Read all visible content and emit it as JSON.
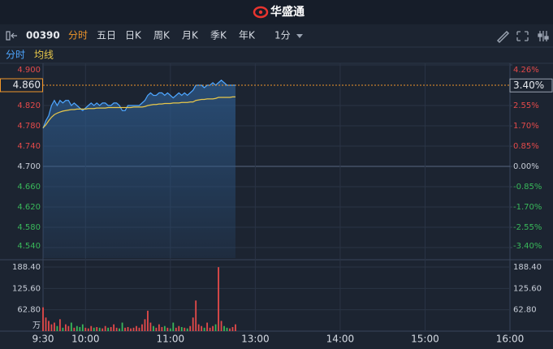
{
  "header": {
    "title": "华盛通"
  },
  "toolbar": {
    "code": "00390",
    "tabs": [
      "分时",
      "五日",
      "日K",
      "周K",
      "月K",
      "季K",
      "年K"
    ],
    "period": "1分"
  },
  "chart_data": {
    "type": "line",
    "x": [
      0,
      2,
      4,
      6,
      8,
      10,
      12,
      14,
      16,
      18,
      20,
      22,
      24,
      26,
      28,
      30,
      32,
      34,
      36,
      38,
      40,
      42,
      44,
      46,
      48,
      50,
      52,
      54,
      56,
      58,
      60,
      62,
      64,
      66,
      68,
      70,
      72,
      74,
      76,
      78,
      80,
      82,
      84,
      86,
      88,
      90,
      92,
      94,
      96,
      98,
      100,
      102,
      104,
      106,
      108,
      110,
      112,
      114,
      116,
      118,
      120,
      122,
      124,
      126,
      128,
      130,
      132,
      134,
      136
    ],
    "xlim": [
      0,
      330
    ],
    "xticks": [
      {
        "value": 0,
        "label": "9:30"
      },
      {
        "value": 30,
        "label": "10:00"
      },
      {
        "value": 90,
        "label": "11:00"
      },
      {
        "value": 150,
        "label": "13:00"
      },
      {
        "value": 210,
        "label": "14:00"
      },
      {
        "value": 270,
        "label": "15:00"
      },
      {
        "value": 330,
        "label": "16:00"
      }
    ],
    "ylim": [
      4.54,
      4.9
    ],
    "yticks": [
      {
        "value": 4.9,
        "label": "4.900"
      },
      {
        "value": 4.82,
        "label": "4.820"
      },
      {
        "value": 4.78,
        "label": "4.780"
      },
      {
        "value": 4.74,
        "label": "4.740"
      },
      {
        "value": 4.7,
        "label": "4.700"
      },
      {
        "value": 4.66,
        "label": "4.660"
      },
      {
        "value": 4.62,
        "label": "4.620"
      },
      {
        "value": 4.58,
        "label": "4.580"
      },
      {
        "value": 4.54,
        "label": "4.540"
      }
    ],
    "y2lim": [
      -3.4,
      4.26
    ],
    "y2ticks": [
      {
        "value": 4.26,
        "label": "4.26%"
      },
      {
        "value": 2.55,
        "label": "2.55%"
      },
      {
        "value": 1.7,
        "label": "1.70%"
      },
      {
        "value": 0.85,
        "label": "0.85%"
      },
      {
        "value": 0,
        "label": "0.00%"
      },
      {
        "value": -0.85,
        "label": "-0.85%"
      },
      {
        "value": -1.7,
        "label": "-1.70%"
      },
      {
        "value": -2.55,
        "label": "-2.55%"
      },
      {
        "value": -3.4,
        "label": "-3.40%"
      }
    ],
    "grid": true,
    "series": [
      {
        "name": "分时",
        "color": "#4ea6ff",
        "values": [
          4.775,
          4.79,
          4.8,
          4.82,
          4.83,
          4.82,
          4.83,
          4.825,
          4.83,
          4.83,
          4.82,
          4.825,
          4.82,
          4.815,
          4.81,
          4.815,
          4.82,
          4.825,
          4.82,
          4.825,
          4.82,
          4.825,
          4.825,
          4.82,
          4.82,
          4.825,
          4.825,
          4.82,
          4.81,
          4.81,
          4.82,
          4.82,
          4.82,
          4.82,
          4.82,
          4.825,
          4.83,
          4.84,
          4.845,
          4.84,
          4.84,
          4.845,
          4.845,
          4.84,
          4.845,
          4.84,
          4.835,
          4.84,
          4.845,
          4.84,
          4.845,
          4.84,
          4.845,
          4.85,
          4.86,
          4.86,
          4.86,
          4.855,
          4.86,
          4.86,
          4.865,
          4.86,
          4.865,
          4.87,
          4.865,
          4.86,
          4.86,
          4.86,
          4.86
        ]
      },
      {
        "name": "均线",
        "color": "#e9c84a",
        "values": [
          4.776,
          4.782,
          4.79,
          4.797,
          4.802,
          4.805,
          4.807,
          4.809,
          4.81,
          4.811,
          4.812,
          4.812,
          4.813,
          4.813,
          4.813,
          4.813,
          4.814,
          4.814,
          4.814,
          4.815,
          4.815,
          4.815,
          4.815,
          4.816,
          4.816,
          4.816,
          4.816,
          4.816,
          4.816,
          4.816,
          4.816,
          4.816,
          4.817,
          4.817,
          4.817,
          4.817,
          4.818,
          4.82,
          4.821,
          4.822,
          4.822,
          4.823,
          4.823,
          4.824,
          4.824,
          4.824,
          4.825,
          4.825,
          4.825,
          4.826,
          4.826,
          4.826,
          4.827,
          4.827,
          4.83,
          4.831,
          4.832,
          4.832,
          4.833,
          4.833,
          4.833,
          4.834,
          4.836,
          4.836,
          4.836,
          4.836,
          4.836,
          4.837,
          4.837
        ]
      }
    ],
    "last_price": {
      "value": 4.86,
      "label": "4.860"
    },
    "last_change": {
      "value": 3.4,
      "label": "3.40%"
    },
    "marker_color": "#f0962a",
    "volume": {
      "values": [
        70,
        40,
        30,
        20,
        25,
        15,
        35,
        10,
        20,
        15,
        25,
        10,
        15,
        12,
        20,
        10,
        8,
        15,
        10,
        12,
        10,
        8,
        15,
        10,
        12,
        20,
        10,
        8,
        25,
        10,
        12,
        8,
        10,
        15,
        10,
        20,
        35,
        60,
        25,
        15,
        10,
        20,
        12,
        15,
        10,
        8,
        25,
        10,
        15,
        12,
        10,
        8,
        15,
        40,
        90,
        20,
        15,
        10,
        25,
        10,
        15,
        20,
        188,
        30,
        15,
        10,
        8,
        12,
        20
      ],
      "ylim": [
        0,
        188.4
      ],
      "yticks": [
        {
          "value": 188.4,
          "label": "188.40"
        },
        {
          "value": 125.6,
          "label": "125.60"
        },
        {
          "value": 62.8,
          "label": "62.80"
        }
      ],
      "unit": "万",
      "up_color": "#e44a4a",
      "down_color": "#39b85a"
    }
  }
}
